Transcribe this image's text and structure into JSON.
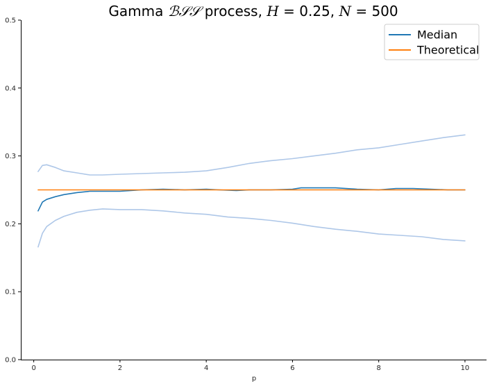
{
  "chart_data": {
    "type": "line",
    "title": {
      "prefix": "Gamma ",
      "script": "ℬ𝒮𝒮",
      "suffix": " process, ",
      "H_sym": "H",
      "H_val": " = 0.25, ",
      "N_sym": "N",
      "N_val": " = 500"
    },
    "xlabel": "p",
    "ylabel": "",
    "xlim": [
      -0.3,
      10.5
    ],
    "ylim": [
      0.0,
      0.5
    ],
    "xticks": [
      0,
      2,
      4,
      6,
      8,
      10
    ],
    "yticks": [
      0.0,
      0.1,
      0.2,
      0.3,
      0.4,
      0.5
    ],
    "xtick_labels": [
      "0",
      "2",
      "4",
      "6",
      "8",
      "10"
    ],
    "ytick_labels": [
      "0.0",
      "0.1",
      "0.2",
      "0.3",
      "0.4",
      "0.5"
    ],
    "grid": false,
    "legend_position": "top-right",
    "colors": {
      "median": "#1f77b4",
      "theoretical": "#ff7f0e",
      "band": "#aec7e8",
      "axis": "#000000"
    },
    "series": [
      {
        "name": "Median",
        "legend": true,
        "color": "#1f77b4",
        "x": [
          0.1,
          0.2,
          0.3,
          0.5,
          0.7,
          1.0,
          1.3,
          1.6,
          2.0,
          2.5,
          3.0,
          3.5,
          4.0,
          4.3,
          4.7,
          5.0,
          5.5,
          6.0,
          6.2,
          6.6,
          7.0,
          7.5,
          8.0,
          8.4,
          8.8,
          9.2,
          9.6,
          10.0
        ],
        "y": [
          0.219,
          0.232,
          0.236,
          0.24,
          0.243,
          0.246,
          0.248,
          0.248,
          0.248,
          0.25,
          0.251,
          0.25,
          0.251,
          0.25,
          0.249,
          0.25,
          0.25,
          0.251,
          0.253,
          0.253,
          0.253,
          0.251,
          0.25,
          0.252,
          0.252,
          0.251,
          0.25,
          0.25
        ]
      },
      {
        "name": "Theoretical",
        "legend": true,
        "color": "#ff7f0e",
        "x": [
          0.1,
          10.0
        ],
        "y": [
          0.25,
          0.25
        ]
      },
      {
        "name": "",
        "legend": false,
        "color": "#aec7e8",
        "x": [
          0.1,
          0.2,
          0.3,
          0.5,
          0.7,
          1.0,
          1.3,
          1.6,
          2.0,
          2.5,
          3.0,
          3.5,
          4.0,
          4.5,
          5.0,
          5.5,
          6.0,
          6.5,
          7.0,
          7.5,
          8.0,
          8.5,
          9.0,
          9.5,
          10.0
        ],
        "y": [
          0.277,
          0.286,
          0.287,
          0.283,
          0.278,
          0.275,
          0.272,
          0.272,
          0.273,
          0.274,
          0.275,
          0.276,
          0.278,
          0.283,
          0.289,
          0.293,
          0.296,
          0.3,
          0.304,
          0.309,
          0.312,
          0.317,
          0.322,
          0.327,
          0.331
        ]
      },
      {
        "name": "",
        "legend": false,
        "color": "#aec7e8",
        "x": [
          0.1,
          0.2,
          0.3,
          0.5,
          0.7,
          1.0,
          1.3,
          1.6,
          2.0,
          2.5,
          3.0,
          3.5,
          4.0,
          4.5,
          5.0,
          5.5,
          6.0,
          6.5,
          7.0,
          7.5,
          8.0,
          8.5,
          9.0,
          9.5,
          10.0
        ],
        "y": [
          0.166,
          0.186,
          0.196,
          0.205,
          0.211,
          0.217,
          0.22,
          0.222,
          0.221,
          0.221,
          0.219,
          0.216,
          0.214,
          0.21,
          0.208,
          0.205,
          0.201,
          0.196,
          0.192,
          0.189,
          0.185,
          0.183,
          0.181,
          0.177,
          0.175
        ]
      }
    ]
  }
}
